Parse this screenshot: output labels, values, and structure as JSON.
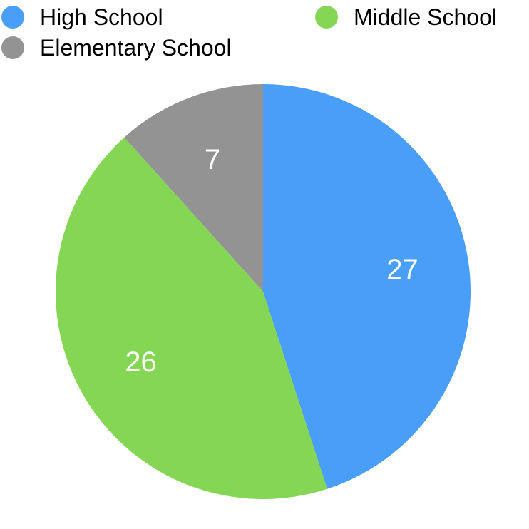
{
  "chart_data": {
    "type": "pie",
    "title": "",
    "categories": [
      "High School",
      "Middle School",
      "Elementary School"
    ],
    "values": [
      27,
      26,
      7
    ],
    "colors": [
      "#499FF7",
      "#84D654",
      "#939393"
    ],
    "legend_position": "top",
    "data_labels": [
      "27",
      "26",
      "7"
    ]
  }
}
